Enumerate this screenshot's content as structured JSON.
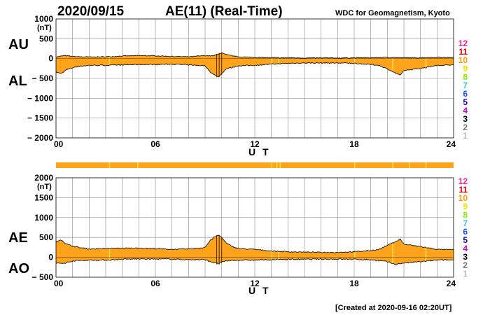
{
  "header": {
    "date": "2020/09/15",
    "title": "AE(11) (Real-Time)",
    "source": "WDC for Geomagnetism, Kyoto"
  },
  "footer": {
    "created": "[Created at 2020-09-16 02:20UT]"
  },
  "legend": {
    "items": [
      {
        "label": "12",
        "color": "#ff1f8f"
      },
      {
        "label": "11",
        "color": "#e00000"
      },
      {
        "label": "10",
        "color": "#ff9900"
      },
      {
        "label": "9",
        "color": "#f0e000"
      },
      {
        "label": "8",
        "color": "#88ee00"
      },
      {
        "label": "7",
        "color": "#33cccc"
      },
      {
        "label": "6",
        "color": "#1a55ff"
      },
      {
        "label": "5",
        "color": "#2200bb"
      },
      {
        "label": "4",
        "color": "#cc00cc"
      },
      {
        "label": "3",
        "color": "#000000"
      },
      {
        "label": "2",
        "color": "#777777"
      },
      {
        "label": "1",
        "color": "#bbbbbb"
      }
    ]
  },
  "colors": {
    "fill": "#ffa31a",
    "outline": "#000000",
    "station_bar": "#ffa31a",
    "station_bar_gap": "#ffe14d"
  },
  "chart_data": [
    {
      "type": "area",
      "title": "AU / AL",
      "side_labels": [
        "AU",
        "AL"
      ],
      "unit_label": "(nT)",
      "xlabel": "U T",
      "ylabel": "",
      "xlim": [
        0,
        24
      ],
      "ylim": [
        -2000,
        1000
      ],
      "yticks": [
        1000,
        500,
        0,
        -500,
        -1000,
        -1500,
        -2000
      ],
      "ytick_labels": [
        "1000",
        "500",
        "0",
        "− 500",
        "− 1000",
        "− 1500",
        "− 2000"
      ],
      "xticks": [
        0,
        6,
        12,
        18,
        24
      ],
      "xtick_labels": [
        "00",
        "06",
        "12",
        "18",
        "24"
      ],
      "grid": true,
      "series": [
        {
          "name": "AU",
          "x": [
            0,
            0.5,
            1,
            1.5,
            2,
            3,
            4,
            5,
            6,
            7,
            8,
            9,
            9.5,
            9.8,
            10,
            10.3,
            11,
            12,
            13,
            14,
            15,
            16,
            17,
            18,
            19,
            20,
            20.5,
            21,
            22,
            23,
            24
          ],
          "values": [
            40,
            75,
            55,
            45,
            40,
            45,
            65,
            75,
            70,
            55,
            45,
            75,
            65,
            120,
            140,
            95,
            45,
            30,
            20,
            20,
            15,
            15,
            15,
            20,
            20,
            30,
            25,
            20,
            20,
            30,
            25
          ]
        },
        {
          "name": "AL",
          "x": [
            0,
            0.3,
            0.6,
            1,
            1.5,
            2,
            3,
            4,
            5,
            6,
            7,
            8,
            9,
            9.3,
            9.6,
            9.8,
            10,
            10.3,
            10.6,
            11,
            12,
            13,
            14,
            15,
            16,
            17,
            18,
            19,
            19.5,
            20,
            20.5,
            20.8,
            21,
            22,
            23,
            24
          ],
          "values": [
            -340,
            -380,
            -290,
            -230,
            -190,
            -170,
            -170,
            -160,
            -150,
            -150,
            -140,
            -160,
            -180,
            -330,
            -420,
            -460,
            -380,
            -250,
            -230,
            -180,
            -170,
            -140,
            -120,
            -110,
            -110,
            -110,
            -120,
            -150,
            -170,
            -260,
            -370,
            -420,
            -300,
            -250,
            -170,
            -160
          ]
        }
      ]
    },
    {
      "type": "area",
      "title": "AE / AO",
      "side_labels": [
        "AE",
        "AO"
      ],
      "unit_label": "(nT)",
      "xlabel": "U T",
      "ylabel": "",
      "xlim": [
        0,
        24
      ],
      "ylim": [
        -500,
        2000
      ],
      "yticks": [
        2000,
        1500,
        1000,
        500,
        0,
        -500
      ],
      "ytick_labels": [
        "2000",
        "1500",
        "1000",
        "500",
        "0",
        "− 500"
      ],
      "xticks": [
        0,
        6,
        12,
        18,
        24
      ],
      "xtick_labels": [
        "00",
        "06",
        "12",
        "18",
        "24"
      ],
      "grid": true,
      "series": [
        {
          "name": "AE",
          "x": [
            0,
            0.3,
            0.6,
            1,
            1.5,
            2,
            3,
            4,
            5,
            6,
            7,
            8,
            9,
            9.3,
            9.6,
            9.8,
            10,
            10.3,
            10.6,
            11,
            12,
            13,
            14,
            15,
            16,
            17,
            18,
            19,
            19.5,
            20,
            20.5,
            20.8,
            21,
            22,
            23,
            24
          ],
          "values": [
            380,
            450,
            340,
            280,
            240,
            210,
            220,
            230,
            230,
            220,
            200,
            210,
            250,
            420,
            520,
            560,
            500,
            350,
            280,
            220,
            200,
            160,
            140,
            130,
            125,
            125,
            140,
            170,
            200,
            300,
            400,
            450,
            330,
            270,
            200,
            190
          ]
        },
        {
          "name": "AO",
          "x": [
            0,
            0.5,
            1,
            2,
            3,
            4,
            5,
            6,
            7,
            8,
            9,
            9.5,
            9.8,
            10,
            10.3,
            11,
            12,
            13,
            14,
            15,
            16,
            17,
            18,
            19,
            20,
            20.5,
            21,
            22,
            23,
            24
          ],
          "values": [
            -150,
            -150,
            -90,
            -70,
            -70,
            -50,
            -40,
            -45,
            -45,
            -60,
            -60,
            -130,
            -160,
            -120,
            -90,
            -70,
            -70,
            -60,
            -50,
            -50,
            -45,
            -45,
            -50,
            -60,
            -110,
            -180,
            -140,
            -110,
            -70,
            -65
          ]
        }
      ]
    }
  ]
}
